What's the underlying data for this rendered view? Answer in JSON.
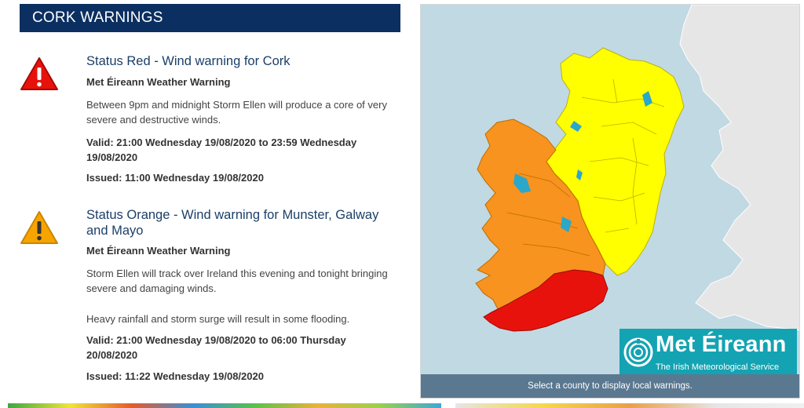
{
  "header": {
    "title": "CORK WARNINGS"
  },
  "warnings": [
    {
      "level": "red",
      "title": "Status Red - Wind warning for Cork",
      "source": "Met Éireann Weather Warning",
      "text": "Between 9pm and midnight Storm Ellen will produce a core of very severe and destructive winds.",
      "text2": "",
      "valid": "Valid: 21:00 Wednesday 19/08/2020 to 23:59 Wednesday 19/08/2020",
      "issued": "Issued: 11:00 Wednesday 19/08/2020"
    },
    {
      "level": "orange",
      "title": "Status Orange - Wind warning for Munster, Galway and Mayo",
      "source": "Met Éireann Weather Warning",
      "text": "Storm Ellen will track over Ireland this evening and tonight bringing severe and damaging winds.",
      "text2": "Heavy rainfall and storm surge will result in some flooding.",
      "valid": "Valid: 21:00 Wednesday 19/08/2020 to 06:00 Thursday 20/08/2020",
      "issued": "Issued: 11:22 Wednesday 19/08/2020"
    }
  ],
  "map": {
    "caption": "Select a county to display local warnings.",
    "logo_name": "Met Éireann",
    "logo_sub": "The Irish Meteorological Service"
  },
  "colors": {
    "header_bg": "#0b2f61",
    "red_warning": "#e8120c",
    "orange_warning": "#f7931e",
    "yellow_warning": "#ffff00",
    "sea": "#c0d9e3",
    "land_other": "#e6e6e6",
    "logo_bg": "#14a3b2",
    "caption_bg": "#5a7890"
  },
  "icons": [
    "warning-triangle-red-icon",
    "warning-triangle-orange-icon",
    "met-eireann-swirl-icon"
  ]
}
